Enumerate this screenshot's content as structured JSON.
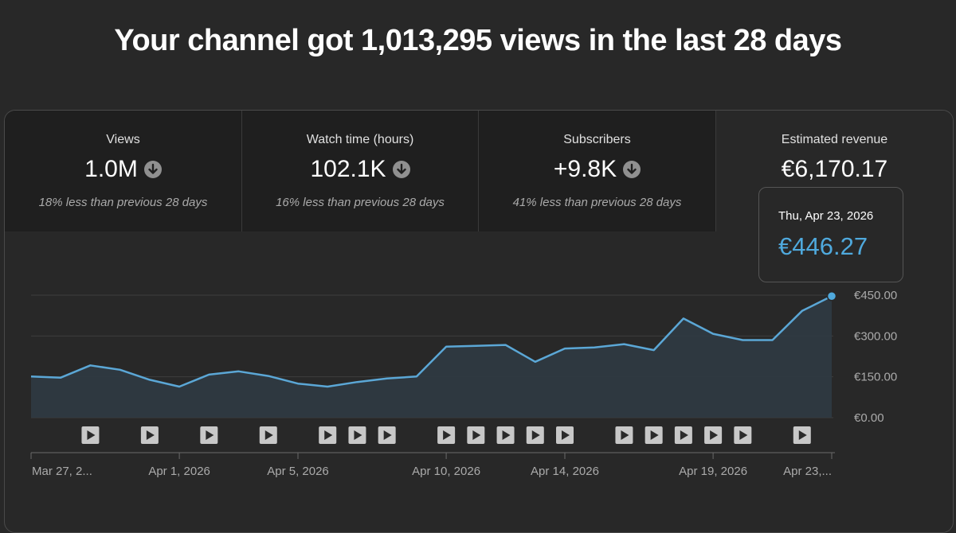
{
  "headline": "Your channel got 1,013,295 views in the last 28 days",
  "metrics": [
    {
      "label": "Views",
      "value": "1.0M",
      "compare": "18% less than previous 28 days",
      "trend_icon": "arrow-down-circle-icon"
    },
    {
      "label": "Watch time (hours)",
      "value": "102.1K",
      "compare": "16% less than previous 28 days",
      "trend_icon": "arrow-down-circle-icon"
    },
    {
      "label": "Subscribers",
      "value": "+9.8K",
      "compare": "41% less than previous 28 days",
      "trend_icon": "arrow-down-circle-icon"
    },
    {
      "label": "Estimated revenue",
      "value": "€6,170.17",
      "selected": true
    }
  ],
  "tooltip": {
    "date": "Thu, Apr 23, 2026",
    "value": "€446.27"
  },
  "colors": {
    "line": "#5ba7d6",
    "area": "#2f3a42",
    "accent": "#4fa9dd",
    "grid": "#3e3e3e"
  },
  "chart_data": {
    "type": "area",
    "x": [
      "Mar 27",
      "Mar 28",
      "Mar 29",
      "Mar 30",
      "Mar 31",
      "Apr 1",
      "Apr 2",
      "Apr 3",
      "Apr 4",
      "Apr 5",
      "Apr 6",
      "Apr 7",
      "Apr 8",
      "Apr 9",
      "Apr 10",
      "Apr 11",
      "Apr 12",
      "Apr 13",
      "Apr 14",
      "Apr 15",
      "Apr 16",
      "Apr 17",
      "Apr 18",
      "Apr 19",
      "Apr 20",
      "Apr 21",
      "Apr 22",
      "Apr 23"
    ],
    "values": [
      151,
      147,
      192,
      176,
      139,
      114,
      158,
      170,
      153,
      125,
      114,
      131,
      144,
      151,
      261,
      264,
      267,
      205,
      254,
      258,
      270,
      248,
      364,
      308,
      285,
      285,
      392,
      446.27
    ],
    "ylim": [
      0,
      450
    ],
    "y_ticks": [
      "€450.00",
      "€300.00",
      "€150.00",
      "€0.00"
    ],
    "x_tick_labels": [
      "Mar 27, 2...",
      "Apr 1, 2026",
      "Apr 5, 2026",
      "Apr 10, 2026",
      "Apr 14, 2026",
      "Apr 19, 2026",
      "Apr 23,..."
    ],
    "x_tick_dates": [
      "Mar 27",
      "Apr 1",
      "Apr 5",
      "Apr 10",
      "Apr 14",
      "Apr 19",
      "Apr 23"
    ],
    "video_markers": [
      "Mar 29",
      "Mar 31",
      "Apr 2",
      "Apr 4",
      "Apr 6",
      "Apr 7",
      "Apr 8",
      "Apr 10",
      "Apr 11",
      "Apr 12",
      "Apr 13",
      "Apr 14",
      "Apr 16",
      "Apr 17",
      "Apr 18",
      "Apr 19",
      "Apr 20",
      "Apr 22"
    ],
    "marker_icon": "play-icon",
    "grid": true,
    "highlight": "Apr 23"
  }
}
